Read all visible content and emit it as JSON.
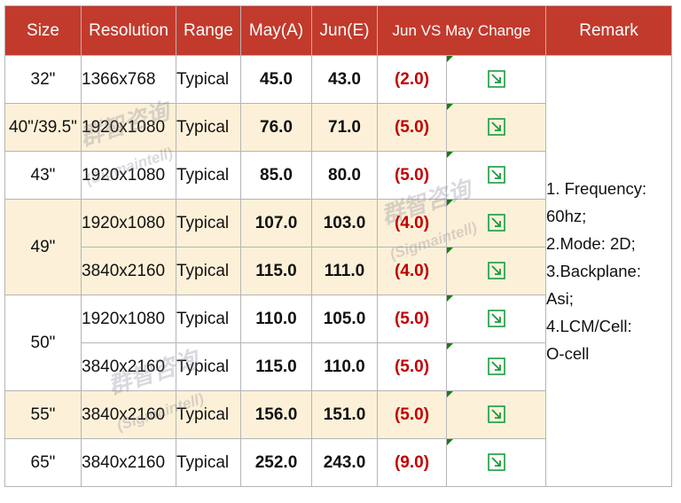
{
  "headers": [
    "Size",
    "Resolution",
    "Range",
    "May(A)",
    "Jun(E)",
    "Jun VS May Change",
    "Remark"
  ],
  "colors": {
    "header_bg": "#c23a2c",
    "band": "#fcf1d8",
    "change_text": "#c00000",
    "indicator": "#1a9a3a"
  },
  "trend_icon": "down-trend-arrow-icon",
  "rows": [
    {
      "size": "32\"",
      "resolution": "1366x768",
      "range": "Typical",
      "may": "45.0",
      "jun": "43.0",
      "change": "(2.0)"
    },
    {
      "size": "40\"/39.5\"",
      "resolution": "1920x1080",
      "range": "Typical",
      "may": "76.0",
      "jun": "71.0",
      "change": "(5.0)"
    },
    {
      "size": "43\"",
      "resolution": "1920x1080",
      "range": "Typical",
      "may": "85.0",
      "jun": "80.0",
      "change": "(5.0)"
    },
    {
      "size": "49\"",
      "resolution": "1920x1080",
      "range": "Typical",
      "may": "107.0",
      "jun": "103.0",
      "change": "(4.0)"
    },
    {
      "resolution": "3840x2160",
      "range": "Typical",
      "may": "115.0",
      "jun": "111.0",
      "change": "(4.0)"
    },
    {
      "size": "50\"",
      "resolution": "1920x1080",
      "range": "Typical",
      "may": "110.0",
      "jun": "105.0",
      "change": "(5.0)"
    },
    {
      "resolution": "3840x2160",
      "range": "Typical",
      "may": "115.0",
      "jun": "110.0",
      "change": "(5.0)"
    },
    {
      "size": "55\"",
      "resolution": "3840x2160",
      "range": "Typical",
      "may": "156.0",
      "jun": "151.0",
      "change": "(5.0)"
    },
    {
      "size": "65\"",
      "resolution": "3840x2160",
      "range": "Typical",
      "may": "252.0",
      "jun": "243.0",
      "change": "(9.0)"
    }
  ],
  "remark_lines": [
    "1. Frequency:",
    "60hz;",
    "2.Mode: 2D;",
    "3.Backplane:",
    "Asi;",
    "4.LCM/Cell:",
    "O-cell"
  ],
  "watermark": {
    "cn": "群智咨询",
    "en": "(Sigmaintell)"
  }
}
